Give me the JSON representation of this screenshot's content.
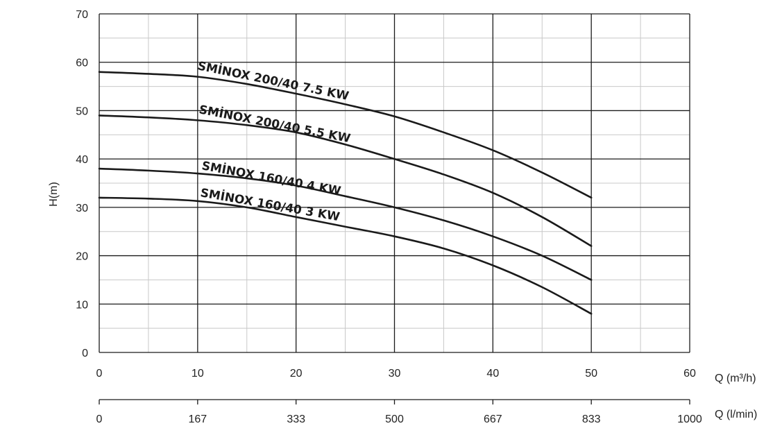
{
  "chart_data": {
    "type": "line",
    "title": "",
    "xlabel": "Q (m³/h)",
    "x2label": "Q (l/min)",
    "ylabel": "H(m)",
    "xlim": [
      0,
      60
    ],
    "ylim": [
      0,
      70
    ],
    "x_ticks": [
      0,
      10,
      20,
      30,
      40,
      50,
      60
    ],
    "y_ticks": [
      0,
      10,
      20,
      30,
      40,
      50,
      60,
      70
    ],
    "x2_ticks": [
      {
        "x": 0,
        "label": "0"
      },
      {
        "x": 10,
        "label": "167"
      },
      {
        "x": 20,
        "label": "333"
      },
      {
        "x": 30,
        "label": "500"
      },
      {
        "x": 40,
        "label": "667"
      },
      {
        "x": 50,
        "label": "833"
      },
      {
        "x": 60,
        "label": "1000"
      }
    ],
    "grid": true,
    "series": [
      {
        "name": "SMİNOX 200/40 7.5 KW",
        "x": [
          0,
          5,
          10,
          15,
          20,
          25,
          30,
          35,
          40,
          45,
          50
        ],
        "y": [
          58,
          57.6,
          57,
          55.5,
          53.5,
          51.3,
          48.8,
          45.5,
          41.8,
          37.2,
          32
        ]
      },
      {
        "name": "SMİNOX 200/40 5.5 KW",
        "x": [
          0,
          5,
          10,
          15,
          20,
          25,
          30,
          35,
          40,
          45,
          50
        ],
        "y": [
          49,
          48.6,
          48,
          47,
          45.5,
          43,
          40,
          36.8,
          33,
          28,
          22
        ]
      },
      {
        "name": "SMİNOX 160/40 4 KW",
        "x": [
          0,
          5,
          10,
          15,
          20,
          25,
          30,
          35,
          40,
          45,
          50
        ],
        "y": [
          38,
          37.6,
          37,
          36,
          34.5,
          32.3,
          30,
          27.3,
          24,
          20,
          15
        ]
      },
      {
        "name": "SMİNOX 160/40 3 KW",
        "x": [
          0,
          5,
          10,
          15,
          20,
          25,
          30,
          35,
          40,
          45,
          50
        ],
        "y": [
          32,
          31.8,
          31.3,
          30,
          28,
          26,
          24,
          21.5,
          18,
          13.5,
          8
        ]
      }
    ]
  }
}
